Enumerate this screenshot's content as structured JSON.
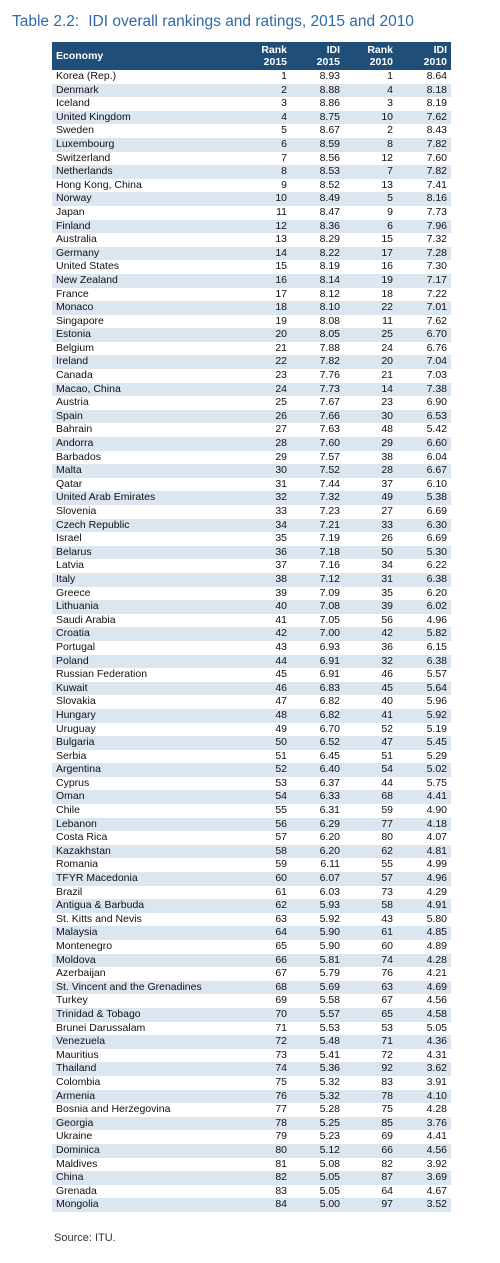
{
  "title": {
    "number": "Table 2.2:",
    "text": "IDI overall rankings and ratings, 2015 and 2010"
  },
  "headers": {
    "economy": "Economy",
    "rank2015": [
      "Rank",
      "2015"
    ],
    "idi2015": [
      "IDI",
      "2015"
    ],
    "rank2010": [
      "Rank",
      "2010"
    ],
    "idi2010": [
      "IDI",
      "2010"
    ]
  },
  "rows": [
    [
      "Korea (Rep.)",
      "1",
      "8.93",
      "1",
      "8.64"
    ],
    [
      "Denmark",
      "2",
      "8.88",
      "4",
      "8.18"
    ],
    [
      "Iceland",
      "3",
      "8.86",
      "3",
      "8.19"
    ],
    [
      "United Kingdom",
      "4",
      "8.75",
      "10",
      "7.62"
    ],
    [
      "Sweden",
      "5",
      "8.67",
      "2",
      "8.43"
    ],
    [
      "Luxembourg",
      "6",
      "8.59",
      "8",
      "7.82"
    ],
    [
      "Switzerland",
      "7",
      "8.56",
      "12",
      "7.60"
    ],
    [
      "Netherlands",
      "8",
      "8.53",
      "7",
      "7.82"
    ],
    [
      "Hong Kong, China",
      "9",
      "8.52",
      "13",
      "7.41"
    ],
    [
      "Norway",
      "10",
      "8.49",
      "5",
      "8.16"
    ],
    [
      "Japan",
      "11",
      "8.47",
      "9",
      "7.73"
    ],
    [
      "Finland",
      "12",
      "8.36",
      "6",
      "7.96"
    ],
    [
      "Australia",
      "13",
      "8.29",
      "15",
      "7.32"
    ],
    [
      "Germany",
      "14",
      "8.22",
      "17",
      "7.28"
    ],
    [
      "United States",
      "15",
      "8.19",
      "16",
      "7.30"
    ],
    [
      "New Zealand",
      "16",
      "8.14",
      "19",
      "7.17"
    ],
    [
      "France",
      "17",
      "8.12",
      "18",
      "7.22"
    ],
    [
      "Monaco",
      "18",
      "8.10",
      "22",
      "7.01"
    ],
    [
      "Singapore",
      "19",
      "8.08",
      "11",
      "7.62"
    ],
    [
      "Estonia",
      "20",
      "8.05",
      "25",
      "6.70"
    ],
    [
      "Belgium",
      "21",
      "7.88",
      "24",
      "6.76"
    ],
    [
      "Ireland",
      "22",
      "7.82",
      "20",
      "7.04"
    ],
    [
      "Canada",
      "23",
      "7.76",
      "21",
      "7.03"
    ],
    [
      "Macao, China",
      "24",
      "7.73",
      "14",
      "7.38"
    ],
    [
      "Austria",
      "25",
      "7.67",
      "23",
      "6.90"
    ],
    [
      "Spain",
      "26",
      "7.66",
      "30",
      "6.53"
    ],
    [
      "Bahrain",
      "27",
      "7.63",
      "48",
      "5.42"
    ],
    [
      "Andorra",
      "28",
      "7.60",
      "29",
      "6.60"
    ],
    [
      "Barbados",
      "29",
      "7.57",
      "38",
      "6.04"
    ],
    [
      "Malta",
      "30",
      "7.52",
      "28",
      "6.67"
    ],
    [
      "Qatar",
      "31",
      "7.44",
      "37",
      "6.10"
    ],
    [
      "United Arab Emirates",
      "32",
      "7.32",
      "49",
      "5.38"
    ],
    [
      "Slovenia",
      "33",
      "7.23",
      "27",
      "6.69"
    ],
    [
      "Czech Republic",
      "34",
      "7.21",
      "33",
      "6.30"
    ],
    [
      "Israel",
      "35",
      "7.19",
      "26",
      "6.69"
    ],
    [
      "Belarus",
      "36",
      "7.18",
      "50",
      "5.30"
    ],
    [
      "Latvia",
      "37",
      "7.16",
      "34",
      "6.22"
    ],
    [
      "Italy",
      "38",
      "7.12",
      "31",
      "6.38"
    ],
    [
      "Greece",
      "39",
      "7.09",
      "35",
      "6.20"
    ],
    [
      "Lithuania",
      "40",
      "7.08",
      "39",
      "6.02"
    ],
    [
      "Saudi Arabia",
      "41",
      "7.05",
      "56",
      "4.96"
    ],
    [
      "Croatia",
      "42",
      "7.00",
      "42",
      "5.82"
    ],
    [
      "Portugal",
      "43",
      "6.93",
      "36",
      "6.15"
    ],
    [
      "Poland",
      "44",
      "6.91",
      "32",
      "6.38"
    ],
    [
      "Russian Federation",
      "45",
      "6.91",
      "46",
      "5.57"
    ],
    [
      "Kuwait",
      "46",
      "6.83",
      "45",
      "5.64"
    ],
    [
      "Slovakia",
      "47",
      "6.82",
      "40",
      "5.96"
    ],
    [
      "Hungary",
      "48",
      "6.82",
      "41",
      "5.92"
    ],
    [
      "Uruguay",
      "49",
      "6.70",
      "52",
      "5.19"
    ],
    [
      "Bulgaria",
      "50",
      "6.52",
      "47",
      "5.45"
    ],
    [
      "Serbia",
      "51",
      "6.45",
      "51",
      "5.29"
    ],
    [
      "Argentina",
      "52",
      "6.40",
      "54",
      "5.02"
    ],
    [
      "Cyprus",
      "53",
      "6.37",
      "44",
      "5.75"
    ],
    [
      "Oman",
      "54",
      "6.33",
      "68",
      "4.41"
    ],
    [
      "Chile",
      "55",
      "6.31",
      "59",
      "4.90"
    ],
    [
      "Lebanon",
      "56",
      "6.29",
      "77",
      "4.18"
    ],
    [
      "Costa Rica",
      "57",
      "6.20",
      "80",
      "4.07"
    ],
    [
      "Kazakhstan",
      "58",
      "6.20",
      "62",
      "4.81"
    ],
    [
      "Romania",
      "59",
      "6.11",
      "55",
      "4.99"
    ],
    [
      "TFYR Macedonia",
      "60",
      "6.07",
      "57",
      "4.96"
    ],
    [
      "Brazil",
      "61",
      "6.03",
      "73",
      "4.29"
    ],
    [
      "Antigua & Barbuda",
      "62",
      "5.93",
      "58",
      "4.91"
    ],
    [
      "St. Kitts and Nevis",
      "63",
      "5.92",
      "43",
      "5.80"
    ],
    [
      "Malaysia",
      "64",
      "5.90",
      "61",
      "4.85"
    ],
    [
      "Montenegro",
      "65",
      "5.90",
      "60",
      "4.89"
    ],
    [
      "Moldova",
      "66",
      "5.81",
      "74",
      "4.28"
    ],
    [
      "Azerbaijan",
      "67",
      "5.79",
      "76",
      "4.21"
    ],
    [
      "St. Vincent and the Grenadines",
      "68",
      "5.69",
      "63",
      "4.69"
    ],
    [
      "Turkey",
      "69",
      "5.58",
      "67",
      "4.56"
    ],
    [
      "Trinidad & Tobago",
      "70",
      "5.57",
      "65",
      "4.58"
    ],
    [
      "Brunei Darussalam",
      "71",
      "5.53",
      "53",
      "5.05"
    ],
    [
      "Venezuela",
      "72",
      "5.48",
      "71",
      "4.36"
    ],
    [
      "Mauritius",
      "73",
      "5.41",
      "72",
      "4.31"
    ],
    [
      "Thailand",
      "74",
      "5.36",
      "92",
      "3.62"
    ],
    [
      "Colombia",
      "75",
      "5.32",
      "83",
      "3.91"
    ],
    [
      "Armenia",
      "76",
      "5.32",
      "78",
      "4.10"
    ],
    [
      "Bosnia and Herzegovina",
      "77",
      "5.28",
      "75",
      "4.28"
    ],
    [
      "Georgia",
      "78",
      "5.25",
      "85",
      "3.76"
    ],
    [
      "Ukraine",
      "79",
      "5.23",
      "69",
      "4.41"
    ],
    [
      "Dominica",
      "80",
      "5.12",
      "66",
      "4.56"
    ],
    [
      "Maldives",
      "81",
      "5.08",
      "82",
      "3.92"
    ],
    [
      "China",
      "82",
      "5.05",
      "87",
      "3.69"
    ],
    [
      "Grenada",
      "83",
      "5.05",
      "64",
      "4.67"
    ],
    [
      "Mongolia",
      "84",
      "5.00",
      "97",
      "3.52"
    ]
  ],
  "source": "Source: ITU.",
  "colors": {
    "title": "#2e6aa6",
    "header_bg": "#1f4e78",
    "stripe": "#dce6f1"
  }
}
